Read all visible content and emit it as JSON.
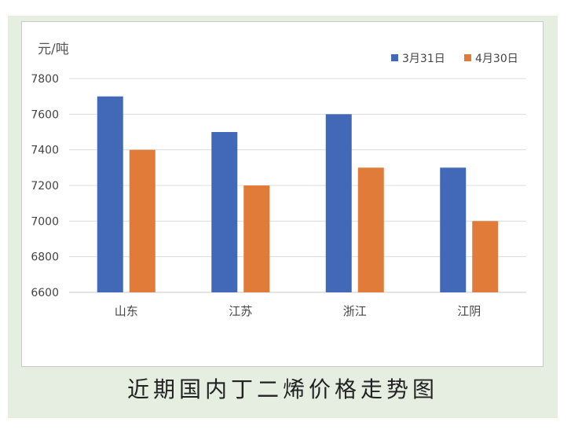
{
  "caption": "近期国内丁二烯价格走势图",
  "chart_data": {
    "type": "bar",
    "unit_label": "元/吨",
    "categories": [
      "山东",
      "江苏",
      "浙江",
      "江阴"
    ],
    "series": [
      {
        "name": "3月31日",
        "color": "#4169b8",
        "values": [
          7700,
          7500,
          7600,
          7300
        ]
      },
      {
        "name": "4月30日",
        "color": "#e07b39",
        "values": [
          7400,
          7200,
          7300,
          7000
        ]
      }
    ],
    "ylim": [
      6600,
      7800
    ],
    "yticks": [
      6600,
      6800,
      7000,
      7200,
      7400,
      7600,
      7800
    ],
    "grid": true,
    "legend": "top-right"
  }
}
